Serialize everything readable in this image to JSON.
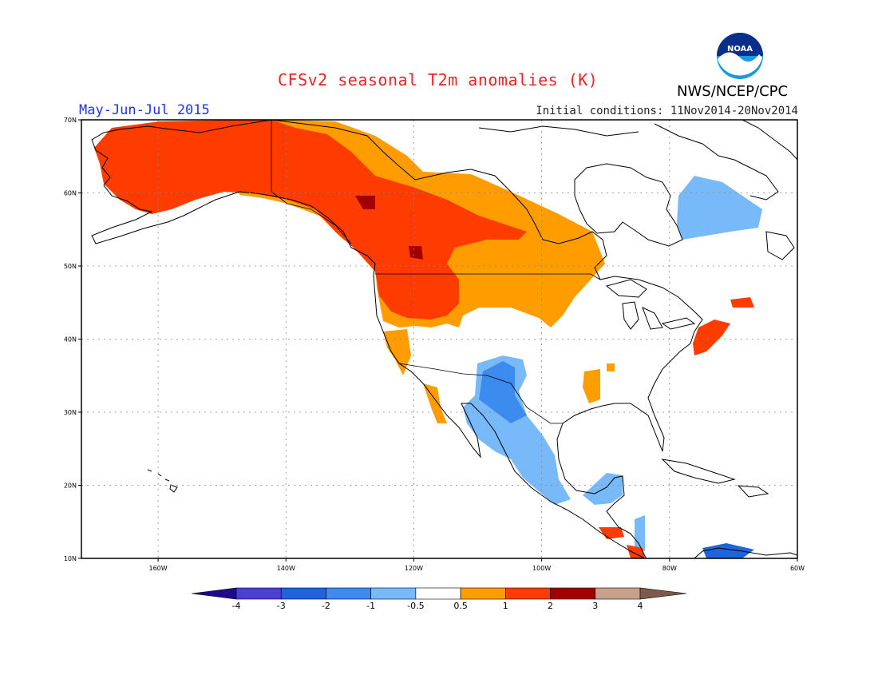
{
  "title": "CFSv2 seasonal T2m anomalies (K)",
  "period": "May-Jun-Jul 2015",
  "initial_conditions": "Initial conditions: 11Nov2014-20Nov2014",
  "agency": "NWS/NCEP/CPC",
  "logo_text": "NOAA",
  "map": {
    "lon_range": [
      -172,
      -60
    ],
    "lat_range": [
      10,
      70
    ],
    "lat_ticks": [
      {
        "value": 70,
        "label": "70N"
      },
      {
        "value": 60,
        "label": "60N"
      },
      {
        "value": 50,
        "label": "50N"
      },
      {
        "value": 40,
        "label": "40N"
      },
      {
        "value": 30,
        "label": "30N"
      },
      {
        "value": 20,
        "label": "20N"
      },
      {
        "value": 10,
        "label": "10N"
      }
    ],
    "lon_ticks": [
      {
        "value": -160,
        "label": "160W"
      },
      {
        "value": -140,
        "label": "140W"
      },
      {
        "value": -120,
        "label": "120W"
      },
      {
        "value": -100,
        "label": "100W"
      },
      {
        "value": -80,
        "label": "80W"
      },
      {
        "value": -60,
        "label": "60W"
      }
    ],
    "grid_lines": true
  },
  "colorbar": {
    "labels": [
      "-4",
      "-3",
      "-2",
      "-1",
      "-0.5",
      "0.5",
      "1",
      "2",
      "3",
      "4"
    ],
    "colors": [
      "#1e0a8c",
      "#4b40d0",
      "#1e64dc",
      "#3c8cf0",
      "#78b9fa",
      "#ffffff",
      "#ff9d00",
      "#ff3c00",
      "#a00000",
      "#c8a08c",
      "#7d5a4b"
    ]
  },
  "colors": {
    "land_outline": "#000000",
    "grid": "#888888",
    "title": "#ee2222",
    "period": "#2233ee"
  }
}
